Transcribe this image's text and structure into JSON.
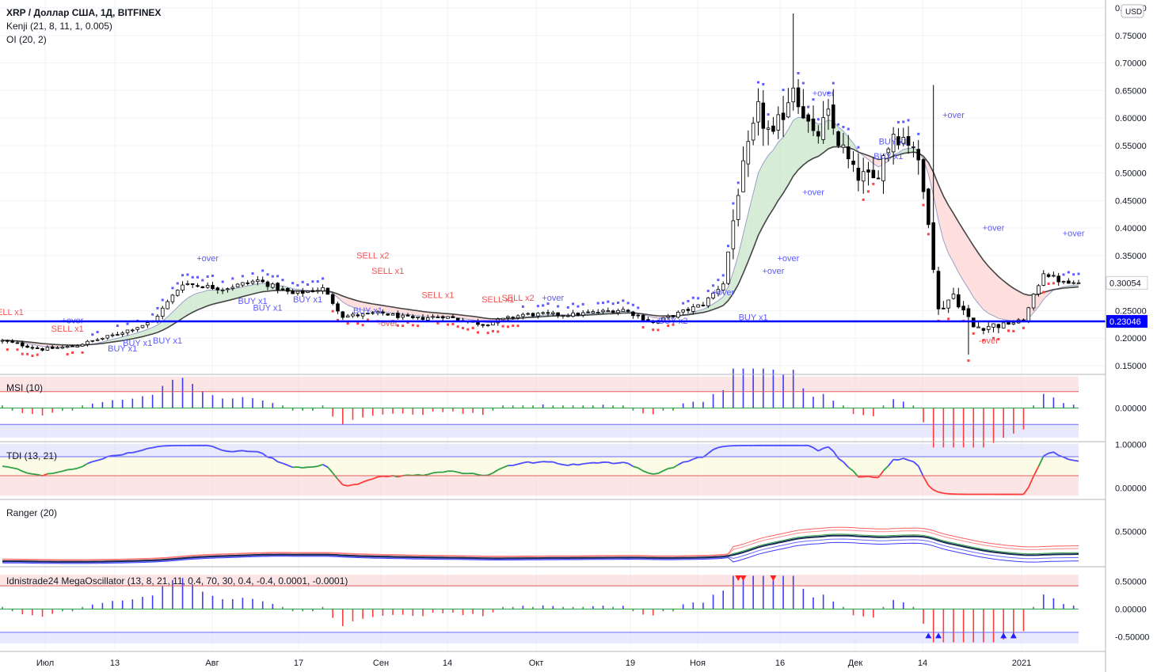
{
  "header": {
    "title": "XRP / Доллар США, 1Д, BITFINEX",
    "indicators": [
      "Kenji (21, 8, 11, 1, 0.005)",
      "OI (20, 2)"
    ],
    "currency_badge": "USD"
  },
  "colors": {
    "price_line": "#0000ff",
    "candle": "#000000",
    "grid": "#f0f3fa",
    "bull_dot": "#5b5bff",
    "bear_dot": "#ff4040",
    "buy_text": "#5b5bff",
    "sell_text": "#ef5350",
    "upper_zone": "#f8cfcf",
    "lower_zone": "#d7d7fb",
    "mid_zone": "#fafad2",
    "hist_up": "#3b3bff",
    "hist_down": "#ff3b3b",
    "hist_neutral": "#2ea043"
  },
  "x_axis": {
    "labels": [
      "Июл",
      "13",
      "Авг",
      "17",
      "Сен",
      "14",
      "Окт",
      "19",
      "Ноя",
      "16",
      "Дек",
      "14",
      "2021"
    ]
  },
  "panels": [
    {
      "name": "price",
      "label": "",
      "ticks": [
        "0.80000",
        "0.75000",
        "0.70000",
        "0.65000",
        "0.60000",
        "0.55000",
        "0.50000",
        "0.45000",
        "0.40000",
        "0.35000",
        "0.30054",
        "0.25000",
        "0.23046",
        "0.20000",
        "0.15000"
      ]
    },
    {
      "name": "msi",
      "label": "MSI (10)",
      "ticks": [
        "0.00000"
      ]
    },
    {
      "name": "tdi",
      "label": "TDI (13, 21)",
      "ticks": [
        "1.00000",
        "0.00000"
      ]
    },
    {
      "name": "ranger",
      "label": "Ranger (20)",
      "ticks": [
        "0.50000"
      ]
    },
    {
      "name": "mega",
      "label": "Idnistrade24 MegaOscillator (13, 8, 21, 11, 0.4, 70, 30, 0.4, -0.4, 0.0001, -0.0001)",
      "ticks": [
        "0.50000",
        "0.00000",
        "-0.50000"
      ]
    }
  ],
  "chart_data": {
    "type": "candlestick",
    "title": "XRP / Доллар США, 1Д, BITFINEX",
    "ylim": [
      0.13,
      0.8
    ],
    "horizontal_line": 0.23046,
    "last_price": 0.30054,
    "anchors": [
      {
        "day": 0,
        "close": 0.195
      },
      {
        "day": 8,
        "close": 0.18
      },
      {
        "day": 14,
        "close": 0.185
      },
      {
        "day": 22,
        "close": 0.205
      },
      {
        "day": 30,
        "close": 0.23
      },
      {
        "day": 36,
        "close": 0.3
      },
      {
        "day": 44,
        "close": 0.29
      },
      {
        "day": 51,
        "close": 0.305
      },
      {
        "day": 58,
        "close": 0.28
      },
      {
        "day": 64,
        "close": 0.29
      },
      {
        "day": 68,
        "close": 0.24
      },
      {
        "day": 76,
        "close": 0.245
      },
      {
        "day": 82,
        "close": 0.235
      },
      {
        "day": 88,
        "close": 0.24
      },
      {
        "day": 96,
        "close": 0.225
      },
      {
        "day": 104,
        "close": 0.243
      },
      {
        "day": 114,
        "close": 0.243
      },
      {
        "day": 124,
        "close": 0.252
      },
      {
        "day": 130,
        "close": 0.228
      },
      {
        "day": 135,
        "close": 0.245
      },
      {
        "day": 140,
        "close": 0.262
      },
      {
        "day": 144,
        "close": 0.3
      },
      {
        "day": 147,
        "close": 0.47
      },
      {
        "day": 151,
        "close": 0.61
      },
      {
        "day": 154,
        "close": 0.56
      },
      {
        "day": 158,
        "close": 0.665
      },
      {
        "day": 162,
        "close": 0.56
      },
      {
        "day": 165,
        "close": 0.6
      },
      {
        "day": 170,
        "close": 0.5
      },
      {
        "day": 174,
        "close": 0.485
      },
      {
        "day": 178,
        "close": 0.575
      },
      {
        "day": 182,
        "close": 0.555
      },
      {
        "day": 185,
        "close": 0.42
      },
      {
        "day": 187,
        "close": 0.25
      },
      {
        "day": 190,
        "close": 0.28
      },
      {
        "day": 194,
        "close": 0.22
      },
      {
        "day": 200,
        "close": 0.225
      },
      {
        "day": 204,
        "close": 0.232
      },
      {
        "day": 208,
        "close": 0.32
      },
      {
        "day": 212,
        "close": 0.3
      }
    ],
    "annotations": [
      {
        "text": "SELL x1",
        "day": 1,
        "price": 0.242,
        "kind": "sell"
      },
      {
        "text": "SELL x1",
        "day": 13,
        "price": 0.212,
        "kind": "sell"
      },
      {
        "text": "+over",
        "day": 14,
        "price": 0.227,
        "kind": "buy"
      },
      {
        "text": "BUY x1",
        "day": 24,
        "price": 0.176,
        "kind": "buy"
      },
      {
        "text": "BUY x1",
        "day": 27,
        "price": 0.186,
        "kind": "buy"
      },
      {
        "text": "BUY x1",
        "day": 33,
        "price": 0.19,
        "kind": "buy"
      },
      {
        "text": "+over",
        "day": 41,
        "price": 0.34,
        "kind": "buy"
      },
      {
        "text": "BUY x1",
        "day": 50,
        "price": 0.262,
        "kind": "buy"
      },
      {
        "text": "BUY x1",
        "day": 53,
        "price": 0.25,
        "kind": "buy"
      },
      {
        "text": "BUY x1",
        "day": 61,
        "price": 0.265,
        "kind": "buy"
      },
      {
        "text": "BUY x1",
        "day": 73,
        "price": 0.245,
        "kind": "buy"
      },
      {
        "text": "SELL x2",
        "day": 74,
        "price": 0.345,
        "kind": "sell"
      },
      {
        "text": "SELL x1",
        "day": 77,
        "price": 0.317,
        "kind": "sell"
      },
      {
        "text": "-over",
        "day": 77,
        "price": 0.222,
        "kind": "sell"
      },
      {
        "text": "SELL x1",
        "day": 87,
        "price": 0.273,
        "kind": "sell"
      },
      {
        "text": "SELL x1",
        "day": 99,
        "price": 0.265,
        "kind": "sell"
      },
      {
        "text": "SELL x2",
        "day": 103,
        "price": 0.268,
        "kind": "sell"
      },
      {
        "text": "+over",
        "day": 110,
        "price": 0.268,
        "kind": "buy"
      },
      {
        "text": "BUY x2",
        "day": 134,
        "price": 0.226,
        "kind": "buy"
      },
      {
        "text": "+over",
        "day": 144,
        "price": 0.278,
        "kind": "buy"
      },
      {
        "text": "BUY x1",
        "day": 150,
        "price": 0.233,
        "kind": "buy"
      },
      {
        "text": "+over",
        "day": 154,
        "price": 0.317,
        "kind": "buy"
      },
      {
        "text": "+over",
        "day": 157,
        "price": 0.34,
        "kind": "buy"
      },
      {
        "text": "+over",
        "day": 162,
        "price": 0.46,
        "kind": "buy"
      },
      {
        "text": "+over",
        "day": 164,
        "price": 0.64,
        "kind": "buy"
      },
      {
        "text": "BUY x1",
        "day": 178,
        "price": 0.552,
        "kind": "buy"
      },
      {
        "text": "BUY x1",
        "day": 177,
        "price": 0.525,
        "kind": "buy"
      },
      {
        "text": "+over",
        "day": 190,
        "price": 0.6,
        "kind": "buy"
      },
      {
        "text": "+over",
        "day": 198,
        "price": 0.395,
        "kind": "buy"
      },
      {
        "text": "-over",
        "day": 197,
        "price": 0.19,
        "kind": "sell"
      },
      {
        "text": "+over",
        "day": 214,
        "price": 0.385,
        "kind": "buy"
      }
    ],
    "kenji": {
      "fast": 8,
      "slow": 21
    },
    "oscillators": {
      "msi": {
        "ylim": [
          -0.5,
          0.5
        ]
      },
      "tdi": {
        "ylim": [
          -0.25,
          1.05
        ],
        "levels": [
          1.0,
          0.0
        ]
      },
      "ranger": {
        "ylim": [
          0.0,
          0.95
        ]
      },
      "mega": {
        "ylim": [
          -0.75,
          0.75
        ],
        "levels": [
          0.5,
          0.0,
          -0.5
        ]
      }
    }
  }
}
